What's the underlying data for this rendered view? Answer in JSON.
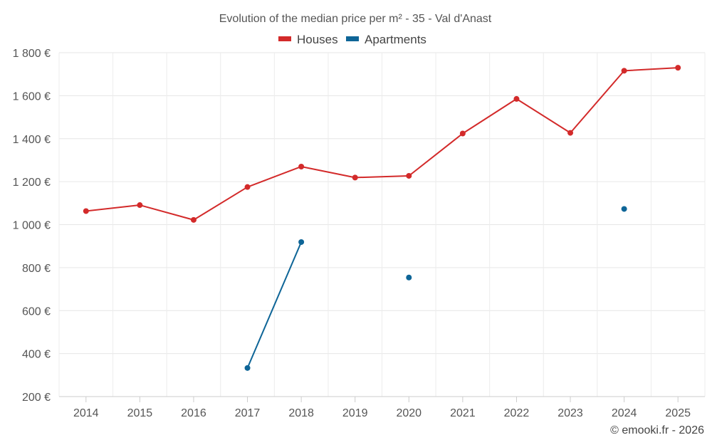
{
  "chart_data": {
    "type": "line",
    "title": "Evolution of the median price per m² - 35 - Val d'Anast",
    "xlabel": "",
    "ylabel": "",
    "categories": [
      "2014",
      "2015",
      "2016",
      "2017",
      "2018",
      "2019",
      "2020",
      "2021",
      "2022",
      "2023",
      "2024",
      "2025"
    ],
    "ylim": [
      200,
      1800
    ],
    "yticks": [
      200,
      400,
      600,
      800,
      1000,
      1200,
      1400,
      1600,
      1800
    ],
    "ytick_labels": [
      "200 €",
      "400 €",
      "600 €",
      "800 €",
      "1 000 €",
      "1 200 €",
      "1 400 €",
      "1 600 €",
      "1 800 €"
    ],
    "grid": true,
    "legend_position": "top-center",
    "series": [
      {
        "name": "Houses",
        "color": "#d32a2a",
        "values": [
          1063,
          1091,
          1022,
          1175,
          1270,
          1219,
          1227,
          1424,
          1585,
          1427,
          1716,
          1730
        ]
      },
      {
        "name": "Apartments",
        "color": "#0e6597",
        "values": [
          null,
          null,
          null,
          333,
          919,
          null,
          754,
          null,
          null,
          null,
          1073,
          null
        ]
      }
    ],
    "credit": "© emooki.fr - 2026"
  }
}
